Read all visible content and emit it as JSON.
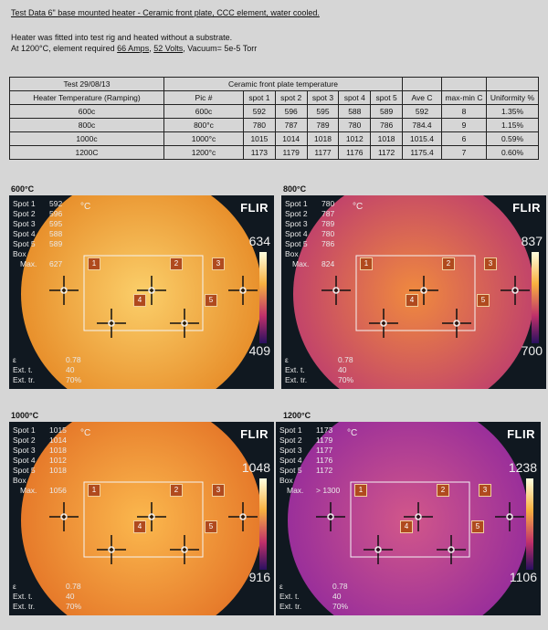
{
  "header": {
    "title": "Test Data 6\" base mounted heater - Ceramic front plate, CCC element, water cooled.",
    "line1": "Heater was fitted into test rig and heated without a substrate.",
    "line2_prefix": "At 1200°C,  element required ",
    "amps": "66 Amps",
    "sep1": ", ",
    "volts": "52 Volts",
    "sep2": ", Vacuum= 5e-5 Torr"
  },
  "table": {
    "test_label": "Test 29/08/13",
    "group_header": "Ceramic front plate temperature",
    "col_heater": "Heater Temperature (Ramping)",
    "columns": [
      "Pic  #",
      "spot 1",
      "spot 2",
      "spot 3",
      "spot 4",
      "spot 5",
      "Ave C",
      "max-min C",
      "Uniformity %"
    ],
    "rows": [
      {
        "heater": "600c",
        "pic": "600c",
        "s1": "592",
        "s2": "596",
        "s3": "595",
        "s4": "588",
        "s5": "589",
        "ave": "592",
        "maxmin": "8",
        "uni": "1.35%"
      },
      {
        "heater": "800c",
        "pic": "800°c",
        "s1": "780",
        "s2": "787",
        "s3": "789",
        "s4": "780",
        "s5": "786",
        "ave": "784.4",
        "maxmin": "9",
        "uni": "1.15%"
      },
      {
        "heater": "1000c",
        "pic": "1000°c",
        "s1": "1015",
        "s2": "1014",
        "s3": "1018",
        "s4": "1012",
        "s5": "1018",
        "ave": "1015.4",
        "maxmin": "6",
        "uni": "0.59%"
      },
      {
        "heater": "1200C",
        "pic": "1200°c",
        "s1": "1173",
        "s2": "1179",
        "s3": "1177",
        "s4": "1176",
        "s5": "1172",
        "ave": "1175.4",
        "maxmin": "7",
        "uni": "0.60%"
      }
    ]
  },
  "panels": [
    {
      "section": "600°C",
      "unit": "°C",
      "brand": "FLIR",
      "spot_labels": [
        "Spot 1",
        "Spot 2",
        "Spot 3",
        "Spot 4",
        "Spot 5"
      ],
      "spots": [
        "592",
        "596",
        "595",
        "588",
        "589"
      ],
      "box_label": "Box",
      "max_label": "Max.",
      "max": "627",
      "scale_max": "634",
      "scale_min": "409",
      "eps_label": "ε",
      "eps": "0.78",
      "ext_t_label": "Ext. t.",
      "ext_t": "40",
      "ext_tr_label": "Ext. tr.",
      "ext_tr": "70%",
      "markers": [
        "1",
        "2",
        "3",
        "4",
        "5"
      ],
      "colors": {
        "center": "#fbcf6a",
        "edge": "#e8902c"
      }
    },
    {
      "section": "800°C",
      "unit": "°C",
      "brand": "FLIR",
      "spot_labels": [
        "Spot 1",
        "Spot 2",
        "Spot 3",
        "Spot 4",
        "Spot 5"
      ],
      "spots": [
        "780",
        "787",
        "789",
        "780",
        "786"
      ],
      "box_label": "Box",
      "max_label": "Max.",
      "max": "824",
      "scale_max": "837",
      "scale_min": "700",
      "eps_label": "ε",
      "eps": "0.78",
      "ext_t_label": "Ext. t.",
      "ext_t": "40",
      "ext_tr_label": "Ext. tr.",
      "ext_tr": "70%",
      "markers": [
        "1",
        "2",
        "3",
        "4",
        "5"
      ],
      "colors": {
        "center": "#f08a3e",
        "edge": "#c2446a"
      }
    },
    {
      "section": "1000°C",
      "unit": "°C",
      "brand": "FLIR",
      "spot_labels": [
        "Spot 1",
        "Spot 2",
        "Spot 3",
        "Spot 4",
        "Spot 5"
      ],
      "spots": [
        "1015",
        "1014",
        "1018",
        "1012",
        "1018"
      ],
      "box_label": "Box",
      "max_label": "Max.",
      "max": "1056",
      "scale_max": "1048",
      "scale_min": "916",
      "eps_label": "ε",
      "eps": "0.78",
      "ext_t_label": "Ext. t.",
      "ext_t": "40",
      "ext_tr_label": "Ext. tr.",
      "ext_tr": "70%",
      "markers": [
        "1",
        "2",
        "3",
        "4",
        "5"
      ],
      "colors": {
        "center": "#fbb84e",
        "edge": "#e67a2a"
      }
    },
    {
      "section": "1200°C",
      "unit": "°C",
      "brand": "FLIR",
      "spot_labels": [
        "Spot 1",
        "Spot 2",
        "Spot 3",
        "Spot 4",
        "Spot 5"
      ],
      "spots": [
        "1173",
        "1179",
        "1177",
        "1176",
        "1172"
      ],
      "box_label": "Box",
      "max_label": "Max.",
      "max": "> 1300",
      "scale_max": "1238",
      "scale_min": "1106",
      "eps_label": "ε",
      "eps": "0.78",
      "ext_t_label": "Ext. t.",
      "ext_t": "40",
      "ext_tr_label": "Ext. tr.",
      "ext_tr": "70%",
      "markers": [
        "1",
        "2",
        "3",
        "4",
        "5"
      ],
      "colors": {
        "center": "#d2578a",
        "edge": "#9a2f9a"
      }
    }
  ]
}
